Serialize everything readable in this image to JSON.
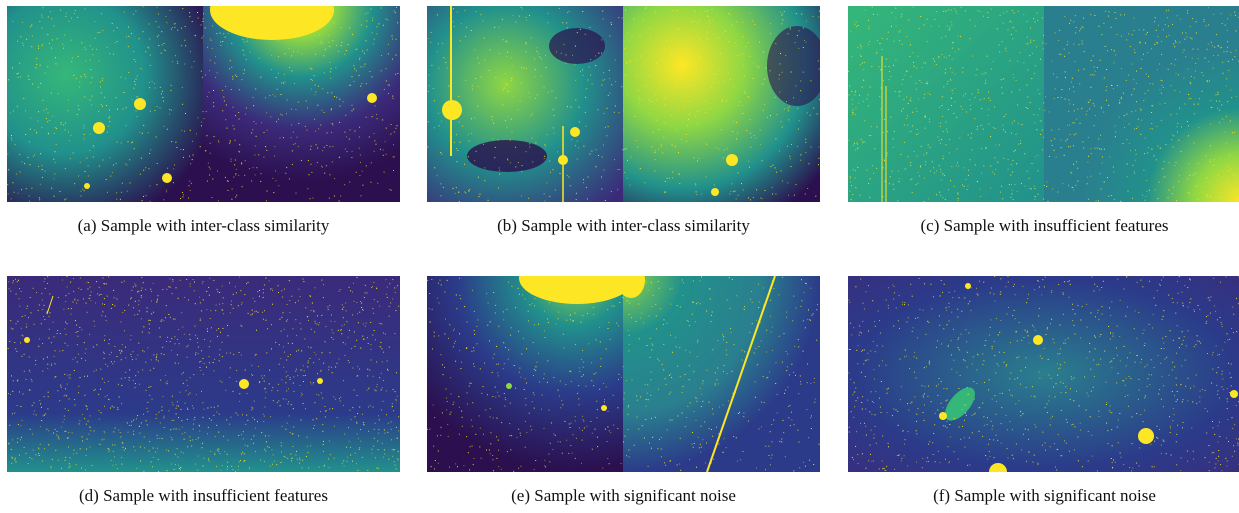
{
  "colors": {
    "dark": "#2b0f4e",
    "deep": "#3b2a7a",
    "mid": "#2a7f8e",
    "teal": "#21918c",
    "green": "#35b779",
    "lime": "#8fd744",
    "yellow": "#fde725"
  },
  "figure": {
    "panels": [
      {
        "label": "(a)",
        "caption": "Sample with inter-class similarity"
      },
      {
        "label": "(b)",
        "caption": "Sample with inter-class similarity"
      },
      {
        "label": "(c)",
        "caption": "Sample with insufficient features"
      },
      {
        "label": "(d)",
        "caption": "Sample with insufficient features"
      },
      {
        "label": "(e)",
        "caption": "Sample with significant noise"
      },
      {
        "label": "(f)",
        "caption": "Sample with significant noise"
      }
    ]
  }
}
